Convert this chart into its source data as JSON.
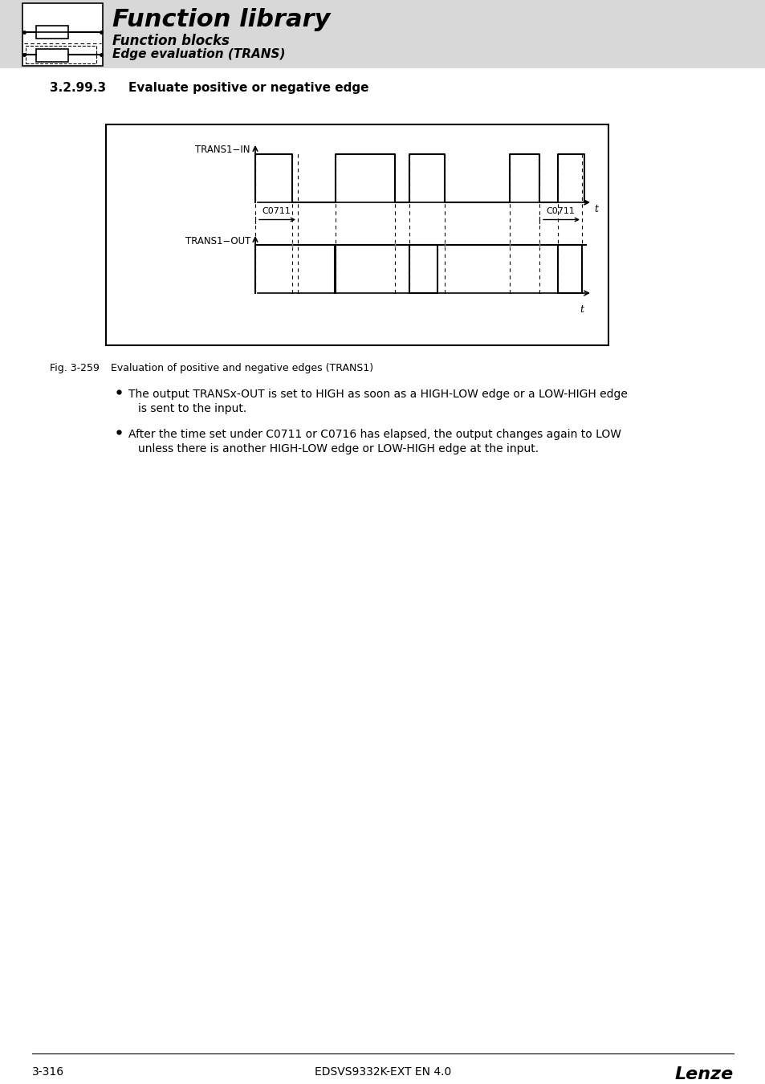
{
  "page_bg": "#ffffff",
  "header_bg": "#d8d8d8",
  "header_title": "Function library",
  "header_sub1": "Function blocks",
  "header_sub2": "Edge evaluation (TRANS)",
  "section_num": "3.2.99.3",
  "section_title": "Evaluate positive or negative edge",
  "fig_label": "Fig. 3-259",
  "fig_caption": "Evaluation of positive and negative edges (TRANS1)",
  "bullet1": "The output TRANSx-OUT is set to HIGH as soon as a HIGH-LOW edge or a LOW-HIGH edge\nis sent to the input.",
  "bullet2": "After the time set under C0711 or C0716 has elapsed, the output changes again to LOW\nunless there is another HIGH-LOW edge or LOW-HIGH edge at the input.",
  "footer_left": "3-316",
  "footer_center": "EDSVS9332K-EXT EN 4.0",
  "footer_right": "Lenze"
}
